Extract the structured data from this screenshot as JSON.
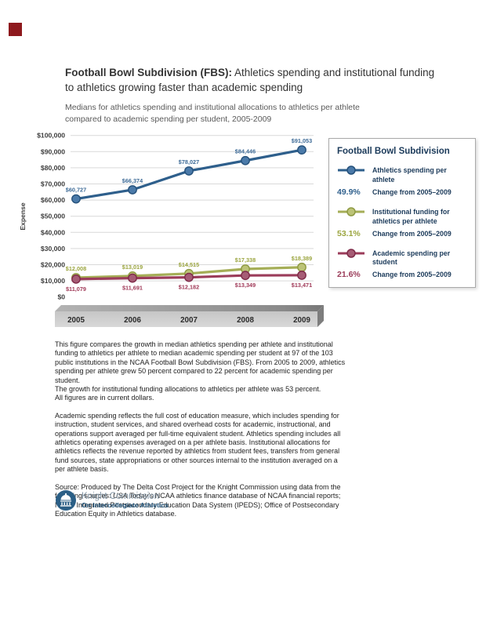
{
  "page": {
    "bleed_color": "#8e191d"
  },
  "header": {
    "title_bold": "Football Bowl Subdivision (FBS):",
    "title_rest": " Athletics spending and institutional funding to athletics growing faster than academic spending",
    "subtitle": "Medians for athletics spending and institutional allocations to athletics per athlete compared to academic spending per student, 2005-2009"
  },
  "chart_data": {
    "type": "line",
    "title": "",
    "xlabel": "",
    "ylabel": "Expense",
    "ylim": [
      0,
      100000
    ],
    "ytick_step": 10000,
    "ytick_labels": [
      "$0",
      "$10,000",
      "$20,000",
      "$30,000",
      "$40,000",
      "$50,000",
      "$60,000",
      "$70,000",
      "$80,000",
      "$90,000",
      "$100,000"
    ],
    "grid": "horizontal",
    "legend_position": "right",
    "categories": [
      "2005",
      "2006",
      "2007",
      "2008",
      "2009"
    ],
    "series": [
      {
        "name": "Athletics spending per athlete",
        "values": [
          60727,
          66374,
          78027,
          84446,
          91053
        ],
        "labels": [
          "$60,727",
          "$66,374",
          "$78,027",
          "$84,446",
          "$91,053"
        ],
        "line_color": "#2e5f8c",
        "marker_fill": "#4b7aa9",
        "marker_stroke": "#24507a",
        "label_color": "#3e6b97",
        "label_pos": "above"
      },
      {
        "name": "Institutional funding for athletics per athlete",
        "values": [
          12008,
          13019,
          14515,
          17338,
          18389
        ],
        "labels": [
          "$12,008",
          "$13,019",
          "$14,515",
          "$17,338",
          "$18,389"
        ],
        "line_color": "#a5ae57",
        "marker_fill": "#bcc377",
        "marker_stroke": "#8e9a42",
        "label_color": "#9ba53f",
        "label_pos": "above"
      },
      {
        "name": "Academic spending per student",
        "values": [
          11079,
          11691,
          12182,
          13349,
          13471
        ],
        "labels": [
          "$11,079",
          "$11,691",
          "$12,182",
          "$13,349",
          "$13,471"
        ],
        "line_color": "#9b3c5a",
        "marker_fill": "#a65c75",
        "marker_stroke": "#7e2a48",
        "label_color": "#a03a58",
        "label_pos": "below"
      }
    ]
  },
  "legend": {
    "title": "Football Bowl Subdivision",
    "entries": [
      {
        "label": "Athletics spending per athlete",
        "pct": "49.9%",
        "change_label": "Change from 2005–2009",
        "line_color": "#2e5f8c",
        "marker_fill": "#4b7aa9",
        "marker_stroke": "#24507a",
        "pct_color": "#2e5f8c"
      },
      {
        "label": "Institutional funding for athletics per athlete",
        "pct": "53.1%",
        "change_label": "Change from 2005–2009",
        "line_color": "#a5ae57",
        "marker_fill": "#bcc377",
        "marker_stroke": "#8e9a42",
        "pct_color": "#9ba53f"
      },
      {
        "label": "Academic spending per student",
        "pct": "21.6%",
        "change_label": "Change from 2005–2009",
        "line_color": "#9b3c5a",
        "marker_fill": "#a65c75",
        "marker_stroke": "#7e2a48",
        "pct_color": "#9b3c5a"
      }
    ]
  },
  "body": {
    "p1_main": "This figure compares the growth in median athletics spending per athlete and institutional funding to athletics per athlete to median academic spending per student at 97 of the 103 public institutions in the NCAA Football Bowl Subdivision (FBS). From 2005 to 2009, athletics spending per athlete grew 50 percent compared to 22 percent for academic spending per student.",
    "p1_line2": "The growth for institutional funding allocations to athletics per athlete was 53 percent.",
    "p1_line3": "All figures are in current dollars.",
    "p2": "Academic spending reflects the full cost of education measure, which includes spending for instruction, student services, and shared overhead costs for academic, instructional, and operations support averaged per full-time equivalent student. Athletics spending includes all athletics operating expenses averaged on a per athlete basis. Institutional allocations for athletics reflects the revenue reported by athletics from student fees, transfers from general fund sources, state appropriations or other sources internal to the institution averaged on a per athlete basis.",
    "source_prefix": "Source: Produced by The Delta Cost Project for the Knight Commission using data from the following sources: ",
    "source_italic": "USA Today’s",
    "source_suffix": " NCAA athletics finance database of NCAA financial reports; NCES Integrated Postsecondary Education Data System (IPEDS); Office of Postsecondary Education Equity in Athletics database."
  },
  "logo": {
    "line1": "Knight Commission",
    "line2": "On Intercollegiate Athletics"
  }
}
